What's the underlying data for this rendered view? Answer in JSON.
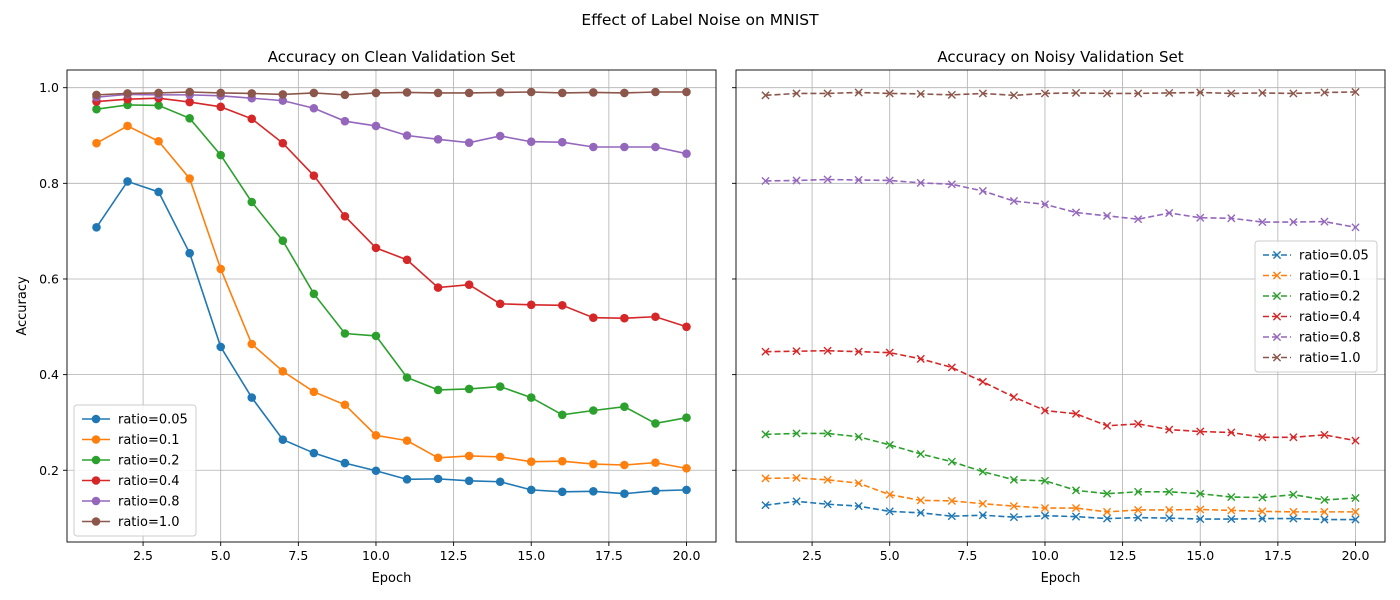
{
  "figure": {
    "suptitle": "Effect of Label Noise on MNIST",
    "ylabel": "Accuracy",
    "xlabel": "Epoch",
    "xticks": [
      "2.5",
      "5.0",
      "7.5",
      "10.0",
      "12.5",
      "15.0",
      "17.5",
      "20.0"
    ],
    "yticks": [
      "0.2",
      "0.4",
      "0.6",
      "0.8",
      "1.0"
    ]
  },
  "chart_data": [
    {
      "type": "line",
      "title": "Accuracy on Clean Validation Set",
      "xlabel": "Epoch",
      "ylabel": "Accuracy",
      "xlim": [
        0.05,
        20.95
      ],
      "ylim": [
        0.05,
        1.037
      ],
      "grid": true,
      "legend_placement": "lower-left",
      "line_style": "solid",
      "marker": "circle",
      "x": [
        1,
        2,
        3,
        4,
        5,
        6,
        7,
        8,
        9,
        10,
        11,
        12,
        13,
        14,
        15,
        16,
        17,
        18,
        19,
        20
      ],
      "series": [
        {
          "name": "ratio=0.05",
          "color": "#1f77b4",
          "values": [
            0.708,
            0.804,
            0.782,
            0.654,
            0.458,
            0.352,
            0.264,
            0.236,
            0.215,
            0.199,
            0.181,
            0.182,
            0.178,
            0.176,
            0.159,
            0.155,
            0.156,
            0.151,
            0.157,
            0.159
          ]
        },
        {
          "name": "ratio=0.1",
          "color": "#ff7f0e",
          "values": [
            0.884,
            0.92,
            0.888,
            0.81,
            0.621,
            0.464,
            0.407,
            0.364,
            0.337,
            0.273,
            0.262,
            0.226,
            0.23,
            0.228,
            0.218,
            0.219,
            0.213,
            0.211,
            0.216,
            0.204
          ]
        },
        {
          "name": "ratio=0.2",
          "color": "#2ca02c",
          "values": [
            0.955,
            0.964,
            0.963,
            0.936,
            0.859,
            0.761,
            0.68,
            0.569,
            0.486,
            0.481,
            0.394,
            0.368,
            0.37,
            0.375,
            0.352,
            0.316,
            0.325,
            0.333,
            0.298,
            0.31
          ]
        },
        {
          "name": "ratio=0.4",
          "color": "#d62728",
          "values": [
            0.971,
            0.976,
            0.978,
            0.97,
            0.96,
            0.935,
            0.884,
            0.816,
            0.731,
            0.665,
            0.64,
            0.582,
            0.588,
            0.548,
            0.546,
            0.545,
            0.519,
            0.518,
            0.521,
            0.5
          ]
        },
        {
          "name": "ratio=0.8",
          "color": "#9467bd",
          "values": [
            0.98,
            0.986,
            0.985,
            0.985,
            0.983,
            0.978,
            0.973,
            0.957,
            0.93,
            0.92,
            0.9,
            0.892,
            0.885,
            0.899,
            0.887,
            0.886,
            0.876,
            0.876,
            0.876,
            0.862
          ]
        },
        {
          "name": "ratio=1.0",
          "color": "#8c564b",
          "values": [
            0.985,
            0.988,
            0.989,
            0.991,
            0.989,
            0.988,
            0.986,
            0.989,
            0.985,
            0.989,
            0.99,
            0.989,
            0.989,
            0.99,
            0.991,
            0.989,
            0.99,
            0.989,
            0.991,
            0.991
          ]
        }
      ]
    },
    {
      "type": "line",
      "title": "Accuracy on Noisy Validation Set",
      "xlabel": "Epoch",
      "xlim": [
        0.05,
        20.95
      ],
      "ylim": [
        0.05,
        1.037
      ],
      "grid": true,
      "legend_placement": "center-right",
      "line_style": "dashed",
      "marker": "x",
      "x": [
        1,
        2,
        3,
        4,
        5,
        6,
        7,
        8,
        9,
        10,
        11,
        12,
        13,
        14,
        15,
        16,
        17,
        18,
        19,
        20
      ],
      "series": [
        {
          "name": "ratio=0.05",
          "color": "#1f77b4",
          "values": [
            0.127,
            0.135,
            0.129,
            0.125,
            0.114,
            0.111,
            0.104,
            0.106,
            0.102,
            0.105,
            0.103,
            0.099,
            0.101,
            0.1,
            0.098,
            0.098,
            0.099,
            0.099,
            0.097,
            0.097
          ]
        },
        {
          "name": "ratio=0.1",
          "color": "#ff7f0e",
          "values": [
            0.183,
            0.184,
            0.18,
            0.173,
            0.149,
            0.137,
            0.136,
            0.13,
            0.125,
            0.121,
            0.121,
            0.113,
            0.117,
            0.117,
            0.118,
            0.116,
            0.114,
            0.113,
            0.113,
            0.113
          ]
        },
        {
          "name": "ratio=0.2",
          "color": "#2ca02c",
          "values": [
            0.275,
            0.277,
            0.277,
            0.27,
            0.253,
            0.234,
            0.218,
            0.197,
            0.18,
            0.178,
            0.158,
            0.151,
            0.155,
            0.155,
            0.151,
            0.144,
            0.143,
            0.149,
            0.138,
            0.142
          ]
        },
        {
          "name": "ratio=0.4",
          "color": "#d62728",
          "values": [
            0.448,
            0.449,
            0.45,
            0.448,
            0.446,
            0.433,
            0.415,
            0.385,
            0.353,
            0.325,
            0.318,
            0.293,
            0.297,
            0.285,
            0.281,
            0.279,
            0.269,
            0.269,
            0.274,
            0.262
          ]
        },
        {
          "name": "ratio=0.8",
          "color": "#9467bd",
          "values": [
            0.805,
            0.806,
            0.808,
            0.807,
            0.806,
            0.801,
            0.798,
            0.784,
            0.763,
            0.756,
            0.739,
            0.732,
            0.725,
            0.738,
            0.728,
            0.727,
            0.719,
            0.719,
            0.72,
            0.708
          ]
        },
        {
          "name": "ratio=1.0",
          "color": "#8c564b",
          "values": [
            0.984,
            0.988,
            0.988,
            0.99,
            0.988,
            0.987,
            0.985,
            0.988,
            0.984,
            0.988,
            0.989,
            0.988,
            0.988,
            0.989,
            0.99,
            0.988,
            0.989,
            0.988,
            0.99,
            0.991
          ]
        }
      ]
    }
  ]
}
